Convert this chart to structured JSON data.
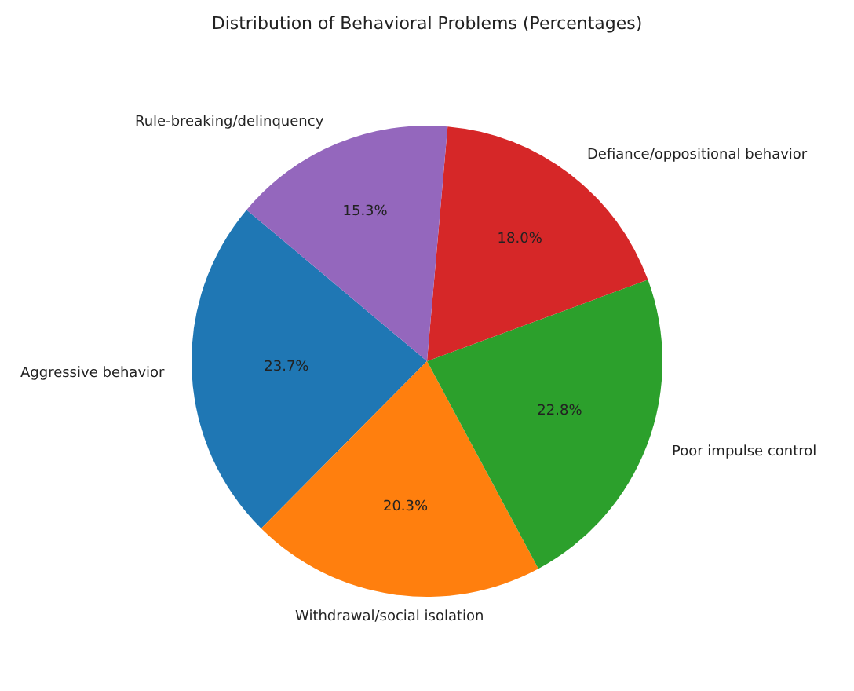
{
  "chart_data": {
    "type": "pie",
    "title": "Distribution of Behavioral Problems (Percentages)",
    "categories": [
      "Aggressive behavior",
      "Withdrawal/social isolation",
      "Poor impulse control",
      "Defiance/oppositional behavior",
      "Rule-breaking/delinquency"
    ],
    "values": [
      23.7,
      20.3,
      22.8,
      18.0,
      15.3
    ],
    "colors": [
      "#1f77b4",
      "#ff7f0e",
      "#2ca02c",
      "#d62728",
      "#9467bd"
    ],
    "value_labels": [
      "23.7%",
      "20.3%",
      "22.8%",
      "18.0%",
      "15.3%"
    ],
    "legend": false
  }
}
